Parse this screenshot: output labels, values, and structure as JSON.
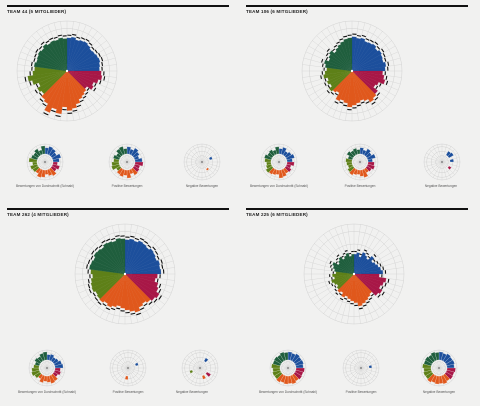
{
  "colors": {
    "blue": "#1c4f9c",
    "crimson": "#a81747",
    "orange": "#e0581c",
    "olive": "#5e8018",
    "green": "#1f5e3d",
    "grid": "#c9c9c9",
    "bar": "#111111"
  },
  "labels": {
    "mini_left": "Bewertungen von Durchschnitt (Schnabl)",
    "mini_mid": "Positive Bewertungen",
    "mini_right": "Negative Bewertungen"
  },
  "chart_data": [
    {
      "type": "radial-bar",
      "title": "TEAM 44 (5 MITGLIEDER)",
      "sectors": [
        {
          "color": "blue",
          "span": 0.25
        },
        {
          "color": "crimson",
          "span": 0.13
        },
        {
          "color": "orange",
          "span": 0.25
        },
        {
          "color": "olive",
          "span": 0.15
        },
        {
          "color": "green",
          "span": 0.22
        }
      ],
      "main": [
        0.92,
        0.95,
        0.9,
        0.93,
        0.95,
        0.92,
        0.88,
        0.9,
        0.93,
        0.95,
        0.92,
        0.9,
        0.95,
        0.98,
        0.9,
        0.8,
        0.85,
        0.7,
        0.75,
        0.8,
        0.85,
        0.95,
        1.05,
        1.1,
        1.0,
        1.2,
        1.1,
        1.25,
        1.05,
        1.0,
        0.9,
        0.95,
        0.85,
        1.0,
        1.1,
        0.95,
        0.9,
        0.92,
        0.88,
        0.9,
        0.93,
        0.9,
        0.95,
        0.9,
        0.92,
        0.9,
        0.93,
        0.9
      ],
      "left": [
        0.7,
        0.9,
        0.8,
        0.6,
        0.95,
        0.7,
        0.5,
        0.8,
        0.6,
        0.9,
        0.7,
        0.5,
        0.8,
        0.9,
        0.6,
        0.7,
        0.8,
        0.5,
        0.9,
        0.7,
        0.6,
        0.8,
        0.5,
        0.9
      ],
      "mid": [
        0.8,
        0.6,
        0.9,
        0.7,
        0.5,
        0.8,
        0.9,
        0.6,
        0.7,
        0.8,
        0.5,
        0.9,
        0.6,
        0.8,
        0.7,
        0.5,
        0.9,
        0.8,
        0.6,
        0.7,
        0.5,
        0.8,
        0.9,
        0.6
      ],
      "right": [
        0,
        0,
        0,
        0,
        0.3,
        0,
        0,
        0,
        0,
        0.2,
        0,
        0,
        0,
        0,
        0,
        0,
        0,
        0,
        0,
        0,
        0,
        0,
        0,
        0
      ]
    },
    {
      "type": "radial-bar",
      "title": "TEAM 106 (6 MITGLIEDER)",
      "sectors": [
        {
          "color": "blue",
          "span": 0.25
        },
        {
          "color": "crimson",
          "span": 0.13
        },
        {
          "color": "orange",
          "span": 0.25
        },
        {
          "color": "olive",
          "span": 0.15
        },
        {
          "color": "green",
          "span": 0.22
        }
      ],
      "main": [
        0.95,
        0.92,
        0.95,
        0.9,
        0.92,
        0.95,
        0.9,
        0.95,
        0.92,
        0.9,
        0.95,
        0.92,
        0.85,
        0.9,
        0.95,
        0.8,
        0.75,
        0.9,
        0.95,
        1.0,
        0.9,
        0.85,
        0.9,
        0.95,
        1.0,
        0.9,
        0.85,
        0.9,
        0.7,
        0.75,
        0.8,
        0.7,
        0.75,
        0.7,
        0.8,
        0.75,
        0.7,
        0.75,
        0.8,
        0.7,
        0.75,
        0.8,
        0.7,
        0.75,
        0.8,
        0.85,
        0.9,
        0.92
      ],
      "left": [
        0.6,
        0.8,
        0.5,
        0.7,
        0.9,
        0.6,
        0.8,
        0.5,
        0.7,
        0.6,
        0.8,
        0.9,
        0.5,
        0.6,
        0.7,
        0.8,
        0.6,
        0.5,
        0.7,
        0.8,
        0.6,
        0.7,
        0.5,
        0.8
      ],
      "mid": [
        0.7,
        0.5,
        0.8,
        0.6,
        0.9,
        0.5,
        0.7,
        0.8,
        0.6,
        0.5,
        0.9,
        0.7,
        0.5,
        0.6,
        0.8,
        0.7,
        0.5,
        0.6,
        0.7,
        0.5,
        0.8,
        0.6,
        0.7,
        0.5
      ],
      "right": [
        0,
        0,
        0.5,
        0.6,
        0,
        0.4,
        0,
        0,
        0.3,
        0,
        0,
        0,
        0,
        0,
        0,
        0,
        0,
        0,
        0,
        0,
        0,
        0,
        0,
        0
      ]
    },
    {
      "type": "radial-bar",
      "title": "TEAM 262 (4 MITGLIEDER)",
      "sectors": [
        {
          "color": "blue",
          "span": 0.25
        },
        {
          "color": "crimson",
          "span": 0.13
        },
        {
          "color": "orange",
          "span": 0.25
        },
        {
          "color": "olive",
          "span": 0.15
        },
        {
          "color": "green",
          "span": 0.22
        }
      ],
      "main": [
        0.95,
        0.98,
        0.95,
        1.0,
        0.98,
        0.95,
        1.0,
        0.98,
        0.95,
        1.0,
        0.98,
        1.0,
        0.9,
        0.85,
        0.95,
        1.0,
        1.1,
        1.05,
        1.0,
        0.95,
        1.0,
        1.1,
        1.05,
        1.0,
        0.95,
        0.9,
        0.95,
        1.0,
        0.95,
        1.0,
        0.98,
        0.95,
        1.0,
        0.98,
        0.95,
        0.9,
        0.95,
        1.0,
        0.98,
        0.95,
        1.0,
        0.98,
        0.95,
        1.0,
        0.98,
        0.95,
        1.0,
        0.98
      ],
      "left": [
        0.6,
        0.7,
        0.5,
        0.6,
        0.8,
        0.9,
        0.6,
        0.7,
        0.5,
        0.8,
        0.9,
        0.7,
        0.6,
        0.8,
        0.5,
        0.7,
        0.9,
        0.8,
        0.6,
        0.5,
        0.7,
        0.6,
        0.8,
        0.9
      ],
      "mid": [
        0,
        0,
        0,
        0,
        0.3,
        0,
        0,
        0,
        0,
        0,
        0,
        0,
        0.4,
        0,
        0,
        0,
        0,
        0,
        0,
        0,
        0,
        0,
        0,
        0
      ],
      "right": [
        0,
        0,
        0.4,
        0,
        0,
        0,
        0,
        0,
        0.5,
        0,
        0.4,
        0,
        0,
        0,
        0,
        0,
        0.3,
        0,
        0,
        0,
        0,
        0,
        0,
        0
      ]
    },
    {
      "type": "radial-bar",
      "title": "TEAM 225 (6 MITGLIEDER)",
      "sectors": [
        {
          "color": "blue",
          "span": 0.25
        },
        {
          "color": "crimson",
          "span": 0.13
        },
        {
          "color": "orange",
          "span": 0.25
        },
        {
          "color": "olive",
          "span": 0.15
        },
        {
          "color": "green",
          "span": 0.22
        }
      ],
      "main": [
        0.55,
        0.6,
        0.5,
        0.65,
        0.6,
        0.55,
        0.7,
        0.6,
        0.65,
        0.7,
        0.75,
        0.8,
        0.7,
        0.9,
        0.85,
        0.8,
        0.9,
        0.85,
        0.7,
        0.75,
        0.8,
        0.85,
        0.9,
        0.8,
        0.75,
        0.7,
        0.65,
        0.7,
        0.6,
        0.65,
        0.6,
        0.55,
        0.6,
        0.65,
        0.55,
        0.6,
        0.5,
        0.55,
        0.6,
        0.65,
        0.5,
        0.55,
        0.6,
        0.5,
        0.55,
        0.6,
        0.5,
        0.55
      ],
      "left": [
        0.9,
        0.8,
        0.95,
        0.85,
        0.9,
        0.8,
        0.95,
        0.85,
        0.9,
        0.8,
        0.95,
        0.85,
        0.9,
        0.8,
        0.95,
        0.85,
        0.9,
        0.8,
        0.95,
        0.85,
        0.9,
        0.8,
        0.95,
        0.85
      ],
      "mid": [
        0,
        0,
        0,
        0,
        0,
        0.3,
        0,
        0,
        0,
        0,
        0,
        0,
        0,
        0,
        0,
        0,
        0,
        0,
        0,
        0,
        0,
        0,
        0,
        0
      ],
      "right": [
        0.9,
        0.8,
        0.95,
        0.85,
        0.9,
        0.8,
        0.95,
        0.85,
        0.9,
        0.8,
        0.95,
        0.85,
        0.9,
        0.8,
        0.95,
        0.85,
        0.9,
        0.8,
        0.95,
        0.85,
        0.9,
        0.8,
        0.95,
        0.85
      ]
    }
  ]
}
